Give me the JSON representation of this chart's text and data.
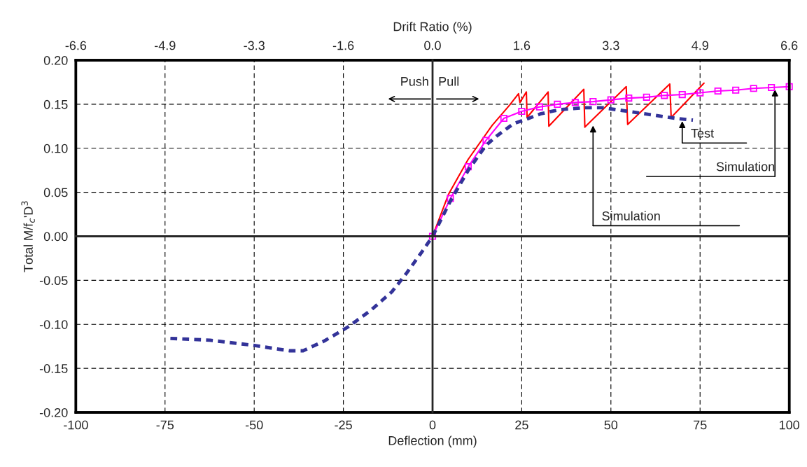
{
  "chart_data": {
    "type": "line",
    "xlabel": "Deflection (mm)",
    "ylabel": "Total M/f$_{c}$'D$^{3}$",
    "x2label": "Drift Ratio (%)",
    "xlim": [
      -100,
      100
    ],
    "xticks": [
      -100,
      -75,
      -50,
      -25,
      0,
      25,
      50,
      75,
      100
    ],
    "ylim": [
      -0.2,
      0.2
    ],
    "yticks": [
      {
        "value": -0.2,
        "label": "-0.20"
      },
      {
        "value": -0.15,
        "label": "-0.15"
      },
      {
        "value": -0.1,
        "label": "-0.10"
      },
      {
        "value": -0.05,
        "label": "-0.05"
      },
      {
        "value": 0,
        "label": "0.00"
      },
      {
        "value": 0.05,
        "label": "0.05"
      },
      {
        "value": 0.1,
        "label": "0.10"
      },
      {
        "value": 0.15,
        "label": "0.15"
      },
      {
        "value": 0.2,
        "label": "0.20"
      }
    ],
    "x2lim": [
      -6.6,
      6.6
    ],
    "x2ticks": [
      -6.6,
      {
        "value": -4.95,
        "label": "-4.9"
      },
      -3.3,
      {
        "value": -1.65,
        "label": "-1.6"
      },
      {
        "value": 0,
        "label": "0.0"
      },
      {
        "value": 1.65,
        "label": "1.6"
      },
      3.3,
      {
        "value": 4.95,
        "label": "4.9"
      },
      6.6
    ],
    "grid": true,
    "legend": false,
    "series": [
      {
        "color": "#ff0000",
        "marker": "none",
        "line_style": "solid",
        "x": [
          0,
          4.5,
          10,
          16.7,
          21.6,
          24.1,
          24.5,
          26.3,
          26.5,
          32.4,
          32.6,
          42.4,
          42.7,
          54.3,
          54.7,
          66.5,
          66.9,
          76.1
        ],
        "values": [
          0,
          0.048,
          0.0875,
          0.126,
          0.149,
          0.162,
          0.152,
          0.164,
          0.135,
          0.164,
          0.125,
          0.167,
          0.124,
          0.17,
          0.127,
          0.173,
          0.135,
          0.174
        ]
      },
      {
        "color": "#ff00ff",
        "marker": "square",
        "line_style": "solid",
        "x": [
          0,
          5,
          10,
          15,
          20,
          25,
          30,
          35,
          40,
          45,
          50,
          55,
          60,
          65,
          70,
          75,
          80,
          85,
          90,
          95,
          100
        ],
        "values": [
          0,
          0.043,
          0.079,
          0.109,
          0.134,
          0.142,
          0.147,
          0.15,
          0.152,
          0.153,
          0.155,
          0.157,
          0.158,
          0.16,
          0.161,
          0.163,
          0.165,
          0.166,
          0.168,
          0.169,
          0.17
        ]
      },
      {
        "color": "#333399",
        "marker": "none",
        "line_style": "dashed",
        "x": [
          -73.5,
          -62.4,
          -50,
          -40.2,
          -36.3,
          -30.4,
          -23.7,
          -17.3,
          -11.4,
          -7.5,
          -2.5,
          0,
          5,
          10,
          14.9,
          18,
          22.7,
          26.3,
          30.2,
          35.7,
          42.4,
          47.8,
          54.7,
          61.4,
          68.2,
          73
        ],
        "values": [
          -0.116,
          -0.118,
          -0.124,
          -0.13,
          -0.13,
          -0.119,
          -0.103,
          -0.084,
          -0.063,
          -0.043,
          -0.015,
          0,
          0.04,
          0.075,
          0.103,
          0.114,
          0.128,
          0.133,
          0.139,
          0.144,
          0.146,
          0.146,
          0.142,
          0.138,
          0.134,
          0.132
        ]
      }
    ],
    "annotations": [
      "Push",
      "Pull",
      {
        "text": "Test",
        "x": 70,
        "y": 0.133
      },
      {
        "text": "Simulation",
        "x": 96,
        "y": 0.169
      },
      {
        "text": "Simulation",
        "x": 45,
        "y": 0.128
      }
    ]
  }
}
